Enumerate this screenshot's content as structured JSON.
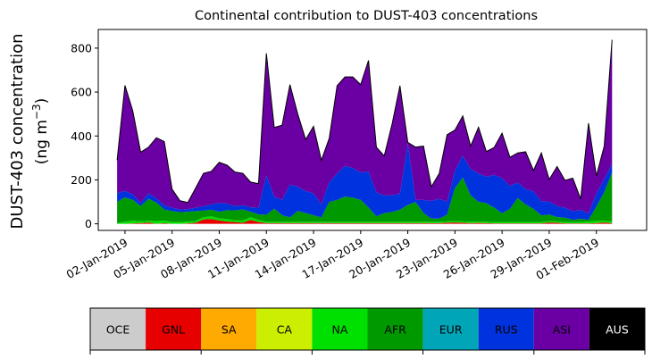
{
  "chart_data": {
    "type": "area",
    "stacked": true,
    "title": "Continental contribution to DUST-403 concentrations",
    "ylabel_line1": "DUST-403 concentration",
    "ylabel_line2_prefix": "(ng m",
    "ylabel_line2_exp": "−3",
    "ylabel_line2_suffix": ")",
    "xlabel": "",
    "ylim": [
      -30,
      885
    ],
    "xlim": [
      -1.2,
      33.7
    ],
    "grid": false,
    "y_ticks": [
      0,
      200,
      400,
      600,
      800
    ],
    "x_tick_labels": [
      {
        "at": 0.5,
        "label": "02-Jan-2019"
      },
      {
        "at": 3.5,
        "label": "05-Jan-2019"
      },
      {
        "at": 6.5,
        "label": "08-Jan-2019"
      },
      {
        "at": 9.5,
        "label": "11-Jan-2019"
      },
      {
        "at": 12.5,
        "label": "14-Jan-2019"
      },
      {
        "at": 15.5,
        "label": "17-Jan-2019"
      },
      {
        "at": 18.5,
        "label": "20-Jan-2019"
      },
      {
        "at": 21.5,
        "label": "23-Jan-2019"
      },
      {
        "at": 24.5,
        "label": "26-Jan-2019"
      },
      {
        "at": 27.5,
        "label": "29-Jan-2019"
      },
      {
        "at": 30.5,
        "label": "01-Feb-2019"
      }
    ],
    "x": [
      0,
      0.5,
      1,
      1.5,
      2,
      2.5,
      3,
      3.5,
      4,
      4.5,
      5,
      5.5,
      6,
      6.5,
      7,
      7.5,
      8,
      8.5,
      9,
      9.5,
      10,
      10.5,
      11,
      11.5,
      12,
      12.5,
      13,
      13.5,
      14,
      14.5,
      15,
      15.5,
      16,
      16.5,
      17,
      17.5,
      18,
      18.5,
      19,
      19.5,
      20,
      20.5,
      21,
      21.5,
      22,
      22.5,
      23,
      23.5,
      24,
      24.5,
      25,
      25.5,
      26,
      26.5,
      27,
      27.5,
      28,
      28.5,
      29,
      29.5,
      30,
      30.5,
      31,
      31.5
    ],
    "series": [
      {
        "name": "OCE",
        "color": "#cccccc",
        "values": [
          0,
          0,
          0,
          0,
          0,
          0,
          0,
          0,
          0,
          0,
          0,
          0,
          0,
          0,
          0,
          0,
          0,
          0,
          0,
          0,
          0,
          0,
          0,
          0,
          0,
          0,
          0,
          0,
          0,
          0,
          0,
          0,
          0,
          0,
          0,
          0,
          0,
          0,
          0,
          0,
          0,
          0,
          0,
          0,
          0,
          0,
          0,
          0,
          0,
          0,
          0,
          0,
          0,
          0,
          0,
          0,
          0,
          0,
          0,
          0,
          0,
          0,
          0,
          0
        ]
      },
      {
        "name": "GNL",
        "color": "#e60000",
        "values": [
          0,
          0,
          2,
          3,
          6,
          0,
          3,
          0,
          0,
          2,
          5,
          20,
          22,
          15,
          10,
          8,
          5,
          18,
          8,
          3,
          3,
          3,
          3,
          3,
          3,
          3,
          3,
          3,
          3,
          3,
          3,
          3,
          3,
          3,
          3,
          3,
          3,
          3,
          3,
          3,
          3,
          3,
          5,
          6,
          5,
          3,
          4,
          3,
          2,
          2,
          2,
          2,
          2,
          2,
          2,
          6,
          5,
          2,
          2,
          2,
          2,
          3,
          6,
          3
        ]
      },
      {
        "name": "SA",
        "color": "#ffaa00",
        "values": [
          0,
          0,
          0,
          0,
          0,
          0,
          0,
          0,
          0,
          0,
          0,
          0,
          0,
          0,
          0,
          0,
          0,
          0,
          0,
          0,
          0,
          0,
          0,
          0,
          0,
          0,
          0,
          0,
          0,
          0,
          0,
          0,
          0,
          0,
          0,
          0,
          0,
          0,
          0,
          0,
          0,
          0,
          0,
          0,
          0,
          0,
          0,
          0,
          0,
          0,
          0,
          0,
          0,
          0,
          0,
          0,
          0,
          0,
          0,
          0,
          0,
          0,
          0,
          0
        ]
      },
      {
        "name": "CA",
        "color": "#ccee00",
        "values": [
          0,
          0,
          0,
          0,
          0,
          0,
          0,
          0,
          0,
          0,
          0,
          0,
          0,
          0,
          0,
          0,
          0,
          0,
          0,
          0,
          0,
          0,
          0,
          0,
          0,
          0,
          0,
          0,
          0,
          0,
          0,
          0,
          0,
          0,
          0,
          0,
          0,
          0,
          0,
          0,
          0,
          0,
          0,
          0,
          0,
          0,
          0,
          0,
          0,
          0,
          0,
          0,
          0,
          0,
          0,
          0,
          0,
          0,
          0,
          0,
          0,
          0,
          0,
          0
        ]
      },
      {
        "name": "NA",
        "color": "#00e000",
        "values": [
          3,
          10,
          12,
          8,
          8,
          12,
          12,
          8,
          8,
          8,
          8,
          10,
          12,
          10,
          12,
          8,
          10,
          12,
          10,
          6,
          6,
          6,
          6,
          6,
          6,
          6,
          6,
          6,
          6,
          6,
          6,
          6,
          6,
          6,
          6,
          6,
          6,
          6,
          6,
          6,
          6,
          6,
          6,
          6,
          6,
          6,
          6,
          6,
          6,
          6,
          6,
          6,
          6,
          6,
          6,
          6,
          6,
          6,
          6,
          6,
          8,
          10,
          8,
          8
        ]
      },
      {
        "name": "AFR",
        "color": "#009900",
        "values": [
          97,
          110,
          95,
          70,
          100,
          85,
          50,
          50,
          45,
          45,
          45,
          30,
          30,
          30,
          40,
          45,
          50,
          25,
          25,
          32,
          60,
          30,
          20,
          50,
          40,
          30,
          20,
          90,
          100,
          115,
          110,
          100,
          65,
          25,
          40,
          45,
          55,
          77,
          90,
          40,
          15,
          15,
          30,
          150,
          200,
          120,
          90,
          85,
          65,
          40,
          60,
          110,
          80,
          60,
          30,
          30,
          20,
          20,
          10,
          15,
          8,
          65,
          130,
          222
        ]
      },
      {
        "name": "EUR",
        "color": "#00a6b8",
        "values": [
          0,
          0,
          0,
          0,
          0,
          0,
          0,
          0,
          0,
          0,
          0,
          0,
          0,
          0,
          0,
          0,
          0,
          0,
          0,
          0,
          0,
          0,
          0,
          0,
          0,
          0,
          0,
          0,
          0,
          0,
          0,
          0,
          0,
          0,
          0,
          0,
          0,
          0,
          0,
          0,
          0,
          0,
          0,
          0,
          0,
          0,
          0,
          0,
          0,
          0,
          0,
          0,
          0,
          0,
          0,
          0,
          0,
          0,
          0,
          0,
          0,
          0,
          0,
          0
        ]
      },
      {
        "name": "RUS",
        "color": "#0033dd",
        "values": [
          40,
          30,
          25,
          15,
          25,
          20,
          20,
          15,
          12,
          12,
          15,
          20,
          25,
          40,
          30,
          20,
          20,
          20,
          30,
          180,
          55,
          70,
          150,
          110,
          100,
          100,
          60,
          90,
          120,
          140,
          135,
          125,
          165,
          110,
          80,
          75,
          75,
          280,
          10,
          60,
          80,
          90,
          60,
          80,
          100,
          120,
          130,
          120,
          150,
          160,
          105,
          70,
          70,
          80,
          65,
          60,
          50,
          45,
          40,
          40,
          30,
          60,
          60,
          40
        ]
      },
      {
        "name": "ASI",
        "color": "#6a00a3",
        "values": [
          150,
          480,
          380,
          230,
          210,
          275,
          290,
          85,
          40,
          30,
          90,
          150,
          150,
          185,
          175,
          155,
          145,
          115,
          110,
          555,
          315,
          340,
          455,
          330,
          235,
          305,
          200,
          200,
          400,
          405,
          415,
          400,
          505,
          205,
          180,
          325,
          490,
          5,
          240,
          245,
          65,
          115,
          305,
          185,
          180,
          105,
          210,
          115,
          125,
          205,
          130,
          135,
          170,
          95,
          220,
          100,
          180,
          125,
          150,
          50,
          410,
          80,
          150,
          565
        ]
      },
      {
        "name": "AUS",
        "color": "#000000",
        "values": [
          0,
          0,
          0,
          0,
          0,
          0,
          0,
          0,
          0,
          0,
          0,
          0,
          0,
          0,
          0,
          0,
          0,
          0,
          0,
          0,
          0,
          0,
          0,
          0,
          0,
          0,
          0,
          0,
          0,
          0,
          0,
          0,
          0,
          0,
          0,
          0,
          0,
          0,
          0,
          0,
          0,
          0,
          0,
          0,
          0,
          0,
          0,
          0,
          0,
          0,
          0,
          0,
          0,
          0,
          0,
          0,
          0,
          0,
          0,
          0,
          0,
          0,
          0,
          0
        ]
      }
    ],
    "legend": {
      "placement": "bottom",
      "text_colors": {
        "AUS": "#ffffff"
      }
    }
  }
}
